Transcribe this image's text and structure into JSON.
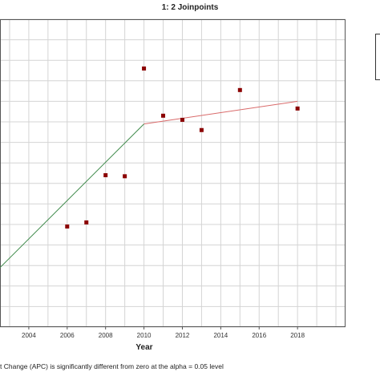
{
  "chart_data": {
    "type": "scatter",
    "title": "1: 2 Joinpoints",
    "xlabel": "Year",
    "ylabel": "",
    "xlim": [
      2002.5,
      2020.5
    ],
    "ylim": [
      0.0,
      15.0
    ],
    "x_ticks": [
      "2004",
      "2006",
      "2008",
      "2010",
      "2012",
      "2014",
      "2016",
      "2018"
    ],
    "grid": true,
    "series": [
      {
        "kind": "observed",
        "marker": "square",
        "color": "#8b0000",
        "points": [
          {
            "x": 2006,
            "y": 4.9
          },
          {
            "x": 2007,
            "y": 5.1
          },
          {
            "x": 2008,
            "y": 7.4
          },
          {
            "x": 2009,
            "y": 7.35
          },
          {
            "x": 2010,
            "y": 12.6
          },
          {
            "x": 2011,
            "y": 10.3
          },
          {
            "x": 2012,
            "y": 10.1
          },
          {
            "x": 2013,
            "y": 9.6
          },
          {
            "x": 2015,
            "y": 11.55
          },
          {
            "x": 2018,
            "y": 10.65
          }
        ]
      },
      {
        "kind": "segment",
        "color": "#3e8a4a",
        "points": [
          {
            "x": 2002.5,
            "y": 2.9
          },
          {
            "x": 2010,
            "y": 9.9
          }
        ]
      },
      {
        "kind": "segment",
        "color": "#d96a6a",
        "points": [
          {
            "x": 2010,
            "y": 9.9
          },
          {
            "x": 2018,
            "y": 11.0
          }
        ]
      }
    ],
    "footnote": "t Change (APC) is significantly different from zero at the alpha = 0.05 level"
  }
}
